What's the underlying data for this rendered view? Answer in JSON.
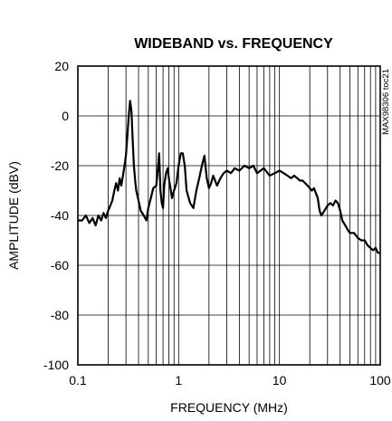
{
  "chart_data": {
    "type": "line",
    "title": "WIDEBAND vs. FREQUENCY",
    "xlabel": "FREQUENCY (MHz)",
    "ylabel": "AMPLITUDE (dBV)",
    "x_scale": "log",
    "xlim": [
      0.1,
      100
    ],
    "ylim": [
      -100,
      20
    ],
    "x_ticks": [
      0.1,
      1,
      10,
      100
    ],
    "x_tick_labels": [
      "0.1",
      "1",
      "10",
      "100"
    ],
    "y_ticks": [
      20,
      0,
      -20,
      -40,
      -60,
      -80,
      -100
    ],
    "y_tick_labels": [
      "20",
      "0",
      "-20",
      "-40",
      "-60",
      "-80",
      "-100"
    ],
    "grid": true,
    "annotation": "MAX98306 toc21",
    "series": [
      {
        "name": "",
        "x": [
          0.1,
          0.11,
          0.12,
          0.13,
          0.14,
          0.15,
          0.16,
          0.17,
          0.18,
          0.19,
          0.2,
          0.21,
          0.22,
          0.23,
          0.24,
          0.25,
          0.26,
          0.27,
          0.28,
          0.29,
          0.3,
          0.31,
          0.32,
          0.33,
          0.34,
          0.35,
          0.36,
          0.37,
          0.38,
          0.4,
          0.42,
          0.45,
          0.48,
          0.5,
          0.53,
          0.56,
          0.6,
          0.62,
          0.64,
          0.66,
          0.68,
          0.7,
          0.72,
          0.75,
          0.78,
          0.8,
          0.83,
          0.86,
          0.9,
          0.95,
          1.0,
          1.05,
          1.1,
          1.15,
          1.2,
          1.3,
          1.4,
          1.5,
          1.6,
          1.7,
          1.8,
          1.9,
          2.0,
          2.1,
          2.2,
          2.4,
          2.6,
          2.8,
          3.0,
          3.3,
          3.6,
          4.0,
          4.5,
          5.0,
          5.5,
          6.0,
          7.0,
          8.0,
          9.0,
          10,
          11,
          12,
          13,
          14,
          15,
          16,
          17,
          18,
          19,
          20,
          21,
          22,
          23,
          24,
          25,
          26,
          27,
          28,
          29,
          30,
          32,
          34,
          36,
          38,
          40,
          42,
          45,
          48,
          50,
          55,
          60,
          65,
          70,
          75,
          80,
          85,
          90,
          95,
          100
        ],
        "y": [
          -42,
          -42,
          -40,
          -43,
          -41,
          -44,
          -40,
          -42,
          -39,
          -41,
          -38,
          -36,
          -34,
          -30,
          -27,
          -30,
          -25,
          -28,
          -24,
          -20,
          -16,
          -8,
          0,
          6,
          2,
          -10,
          -20,
          -26,
          -30,
          -34,
          -38,
          -40,
          -42,
          -37,
          -33,
          -29,
          -28,
          -22,
          -15,
          -30,
          -35,
          -37,
          -28,
          -23,
          -21,
          -25,
          -29,
          -33,
          -30,
          -27,
          -20,
          -15,
          -15,
          -20,
          -30,
          -35,
          -37,
          -30,
          -25,
          -20,
          -16,
          -25,
          -29,
          -27,
          -24,
          -28,
          -25,
          -23,
          -22,
          -23,
          -21,
          -22,
          -20,
          -21,
          -20,
          -23,
          -21,
          -24,
          -23,
          -22,
          -23,
          -24,
          -25,
          -24,
          -25,
          -26,
          -26,
          -27,
          -28,
          -29,
          -30,
          -29,
          -31,
          -33,
          -38,
          -40,
          -39,
          -38,
          -37,
          -36,
          -35,
          -36,
          -34,
          -35,
          -38,
          -42,
          -44,
          -46,
          -47,
          -47,
          -49,
          -50,
          -50,
          -52,
          -53,
          -54,
          -53,
          -55,
          -55
        ]
      }
    ]
  }
}
